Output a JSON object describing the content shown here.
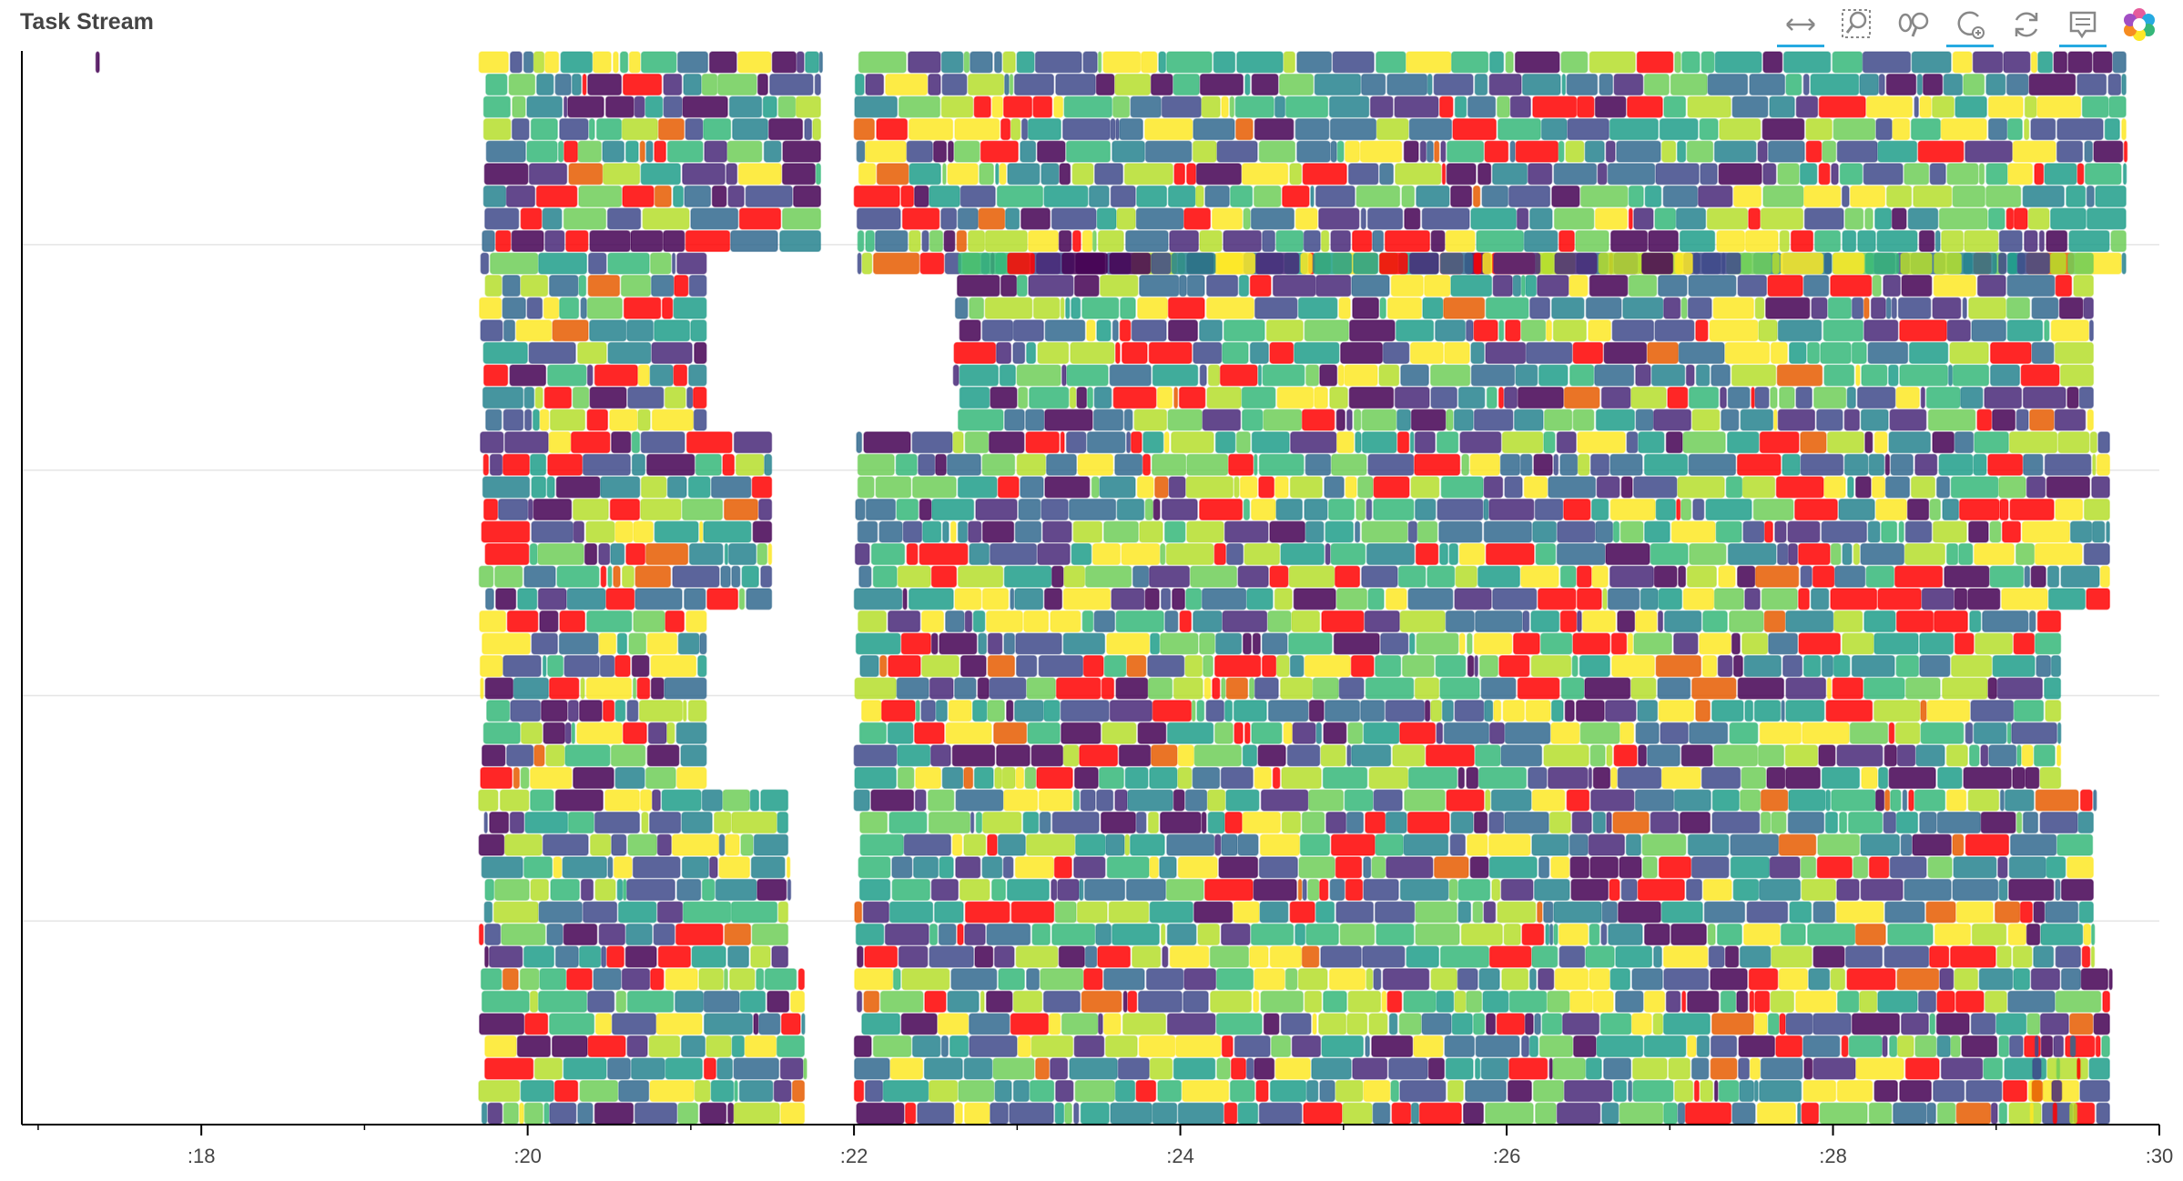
{
  "title": "Task Stream",
  "toolbar": {
    "tools": [
      {
        "name": "xpan-tool",
        "active": true
      },
      {
        "name": "box-zoom-tool",
        "active": false
      },
      {
        "name": "wheel-zoom-tool",
        "active": false
      },
      {
        "name": "reset-tool",
        "active": true
      },
      {
        "name": "refresh-tool",
        "active": false
      },
      {
        "name": "hover-tool",
        "active": true
      },
      {
        "name": "bokeh-logo",
        "active": false
      }
    ]
  },
  "colors": {
    "palette": [
      "#440154",
      "#482878",
      "#3e4989",
      "#31688e",
      "#26828e",
      "#1f9e89",
      "#35b779",
      "#6ece58",
      "#b5de2b",
      "#fde725",
      "#ff0000",
      "#e65c00"
    ],
    "grid": "#e5e5e5",
    "axis": "#000000"
  },
  "chart_data": {
    "type": "gantt",
    "xlabel": "",
    "ylabel": "",
    "x_tick_labels": [
      ":18",
      ":20",
      ":22",
      ":24",
      ":26",
      ":28",
      ":30"
    ],
    "x_ticks_minutes": [
      18,
      20,
      22,
      24,
      26,
      28,
      30
    ],
    "xlim_minutes": [
      16.9,
      30.0
    ],
    "worker_rows": 48,
    "grid": "horizontal",
    "groups": [
      {
        "rows": [
          0,
          0
        ],
        "start": 17.35,
        "end": 17.38,
        "density": "sparse"
      },
      {
        "rows": [
          0,
          8
        ],
        "start": 19.7,
        "end": 21.8,
        "density": "dense"
      },
      {
        "rows": [
          0,
          9
        ],
        "start": 22.0,
        "end": 29.8,
        "density": "dense"
      },
      {
        "rows": [
          9,
          16
        ],
        "start": 19.7,
        "end": 21.1,
        "density": "dense"
      },
      {
        "rows": [
          9,
          16
        ],
        "start": 22.6,
        "end": 29.6,
        "density": "dense"
      },
      {
        "rows": [
          17,
          24
        ],
        "start": 19.7,
        "end": 21.5,
        "density": "dense"
      },
      {
        "rows": [
          17,
          24
        ],
        "start": 22.0,
        "end": 29.7,
        "density": "dense"
      },
      {
        "rows": [
          25,
          32
        ],
        "start": 19.7,
        "end": 21.1,
        "density": "dense"
      },
      {
        "rows": [
          25,
          32
        ],
        "start": 22.0,
        "end": 29.4,
        "density": "dense"
      },
      {
        "rows": [
          33,
          40
        ],
        "start": 19.7,
        "end": 21.6,
        "density": "dense"
      },
      {
        "rows": [
          33,
          40
        ],
        "start": 22.0,
        "end": 29.6,
        "density": "dense"
      },
      {
        "rows": [
          41,
          47
        ],
        "start": 19.7,
        "end": 21.7,
        "density": "dense"
      },
      {
        "rows": [
          41,
          47
        ],
        "start": 22.0,
        "end": 29.7,
        "density": "dense"
      },
      {
        "rows": [
          44,
          47
        ],
        "start": 29.2,
        "end": 29.5,
        "density": "sparse"
      }
    ]
  }
}
